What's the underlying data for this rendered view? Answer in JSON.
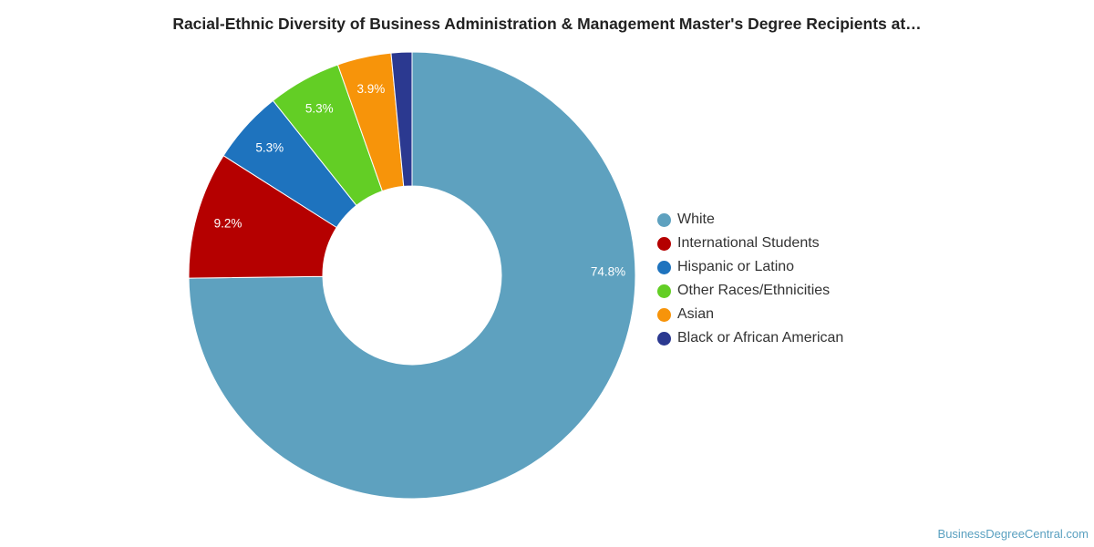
{
  "chart_data": {
    "type": "pie",
    "title": "Racial-Ethnic Diversity of Business Administration & Management Master's Degree Recipients at…",
    "slices": [
      {
        "name": "White",
        "value": 74.8,
        "label": "74.8%",
        "color": "#5ea1bf"
      },
      {
        "name": "International Students",
        "value": 9.2,
        "label": "9.2%",
        "color": "#b50000"
      },
      {
        "name": "Hispanic or Latino",
        "value": 5.3,
        "label": "5.3%",
        "color": "#1e73be"
      },
      {
        "name": "Other Races/Ethnicities",
        "value": 5.3,
        "label": "5.3%",
        "color": "#63ce25"
      },
      {
        "name": "Asian",
        "value": 3.9,
        "label": "3.9%",
        "color": "#f7940a"
      },
      {
        "name": "Black or African American",
        "value": 1.5,
        "label": "",
        "color": "#2b3990"
      }
    ],
    "legend_position": "right",
    "donut": true
  },
  "footer": {
    "credit": "BusinessDegreeCentral.com"
  }
}
